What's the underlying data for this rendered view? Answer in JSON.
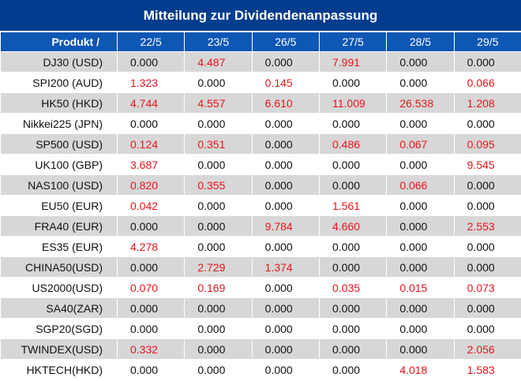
{
  "title": "Mitteilung zur Dividendenanpassung",
  "header": {
    "product_label": "Produkt /",
    "dates": [
      "22/5",
      "23/5",
      "26/5",
      "27/5",
      "28/5",
      "29/5"
    ]
  },
  "colors": {
    "title_bg": "#013d8e",
    "header_bg": "#0e57b5",
    "row_shade": "#d7d7d7",
    "positive_value": "#e8141b",
    "zero_value": "#111111"
  },
  "rows": [
    {
      "product": "DJ30 (USD)",
      "values": [
        "0.000",
        "4.487",
        "0.000",
        "7.991",
        "0.000",
        "0.000"
      ]
    },
    {
      "product": "SPI200 (AUD)",
      "values": [
        "1.323",
        "0.000",
        "0.145",
        "0.000",
        "0.000",
        "0.066"
      ]
    },
    {
      "product": "HK50 (HKD)",
      "values": [
        "4.744",
        "4.557",
        "6.610",
        "11.009",
        "26.538",
        "1.208"
      ]
    },
    {
      "product": "Nikkei225 (JPN)",
      "values": [
        "0.000",
        "0.000",
        "0.000",
        "0.000",
        "0.000",
        "0.000"
      ]
    },
    {
      "product": "SP500 (USD)",
      "values": [
        "0.124",
        "0.351",
        "0.000",
        "0.486",
        "0.067",
        "0.095"
      ]
    },
    {
      "product": "UK100 (GBP)",
      "values": [
        "3.687",
        "0.000",
        "0.000",
        "0.000",
        "0.000",
        "9.545"
      ]
    },
    {
      "product": "NAS100 (USD)",
      "values": [
        "0.820",
        "0.355",
        "0.000",
        "0.000",
        "0.066",
        "0.000"
      ]
    },
    {
      "product": "EU50 (EUR)",
      "values": [
        "0.042",
        "0.000",
        "0.000",
        "1.561",
        "0.000",
        "0.000"
      ]
    },
    {
      "product": "FRA40 (EUR)",
      "values": [
        "0.000",
        "0.000",
        "9.784",
        "4.660",
        "0.000",
        "2.553"
      ]
    },
    {
      "product": "ES35 (EUR)",
      "values": [
        "4.278",
        "0.000",
        "0.000",
        "0.000",
        "0.000",
        "0.000"
      ]
    },
    {
      "product": "CHINA50(USD)",
      "values": [
        "0.000",
        "2.729",
        "1.374",
        "0.000",
        "0.000",
        "0.000"
      ]
    },
    {
      "product": "US2000(USD)",
      "values": [
        "0.070",
        "0.169",
        "0.000",
        "0.035",
        "0.015",
        "0.073"
      ]
    },
    {
      "product": "SA40(ZAR)",
      "values": [
        "0.000",
        "0.000",
        "0.000",
        "0.000",
        "0.000",
        "0.000"
      ]
    },
    {
      "product": "SGP20(SGD)",
      "values": [
        "0.000",
        "0.000",
        "0.000",
        "0.000",
        "0.000",
        "0.000"
      ]
    },
    {
      "product": "TWINDEX(USD)",
      "values": [
        "0.332",
        "0.000",
        "0.000",
        "0.000",
        "0.000",
        "2.056"
      ]
    },
    {
      "product": "HKTECH(HKD)",
      "values": [
        "0.000",
        "0.000",
        "0.000",
        "0.000",
        "4.018",
        "1.583"
      ]
    }
  ]
}
